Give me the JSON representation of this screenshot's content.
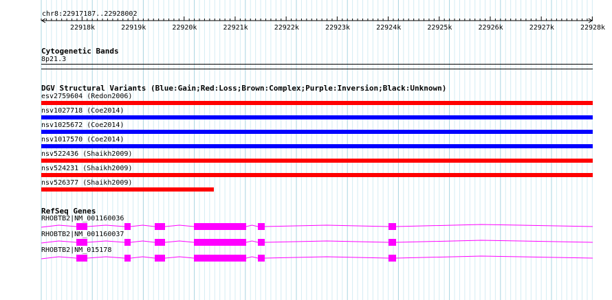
{
  "ruler": {
    "position": "chr8:22917187..22928002",
    "ticks": [
      "22918k",
      "22919k",
      "22920k",
      "22921k",
      "22922k",
      "22923k",
      "22924k",
      "22925k",
      "22926k",
      "22927k",
      "22928k"
    ]
  },
  "cytobands": {
    "title": "Cytogenetic Bands",
    "band": "8p21.3"
  },
  "dgv": {
    "title": "DGV Structural Variants (Blue:Gain;Red:Loss;Brown:Complex;Purple:Inversion;Black:Unknown)",
    "variants": [
      {
        "label": "esv2759604 (Redon2006)",
        "color": "#ff0000",
        "extent": "full"
      },
      {
        "label": "nsv1027718 (Coe2014)",
        "color": "#0000ff",
        "extent": "full"
      },
      {
        "label": "nsv1025672 (Coe2014)",
        "color": "#0000ff",
        "extent": "full"
      },
      {
        "label": "nsv1017570 (Coe2014)",
        "color": "#0000ff",
        "extent": "full"
      },
      {
        "label": "nsv522436 (Shaikh2009)",
        "color": "#ff0000",
        "extent": "full"
      },
      {
        "label": "nsv524231 (Shaikh2009)",
        "color": "#ff0000",
        "extent": "full"
      },
      {
        "label": "nsv526377 (Shaikh2009)",
        "color": "#ff0000",
        "extent": "partial"
      }
    ]
  },
  "refseq": {
    "title": "RefSeq Genes",
    "color": "#ff00ff",
    "genes": [
      {
        "label": "RHOBTB2|NM_001160036"
      },
      {
        "label": "RHOBTB2|NM_001160037"
      },
      {
        "label": "RHOBTB2|NM_015178"
      }
    ]
  }
}
